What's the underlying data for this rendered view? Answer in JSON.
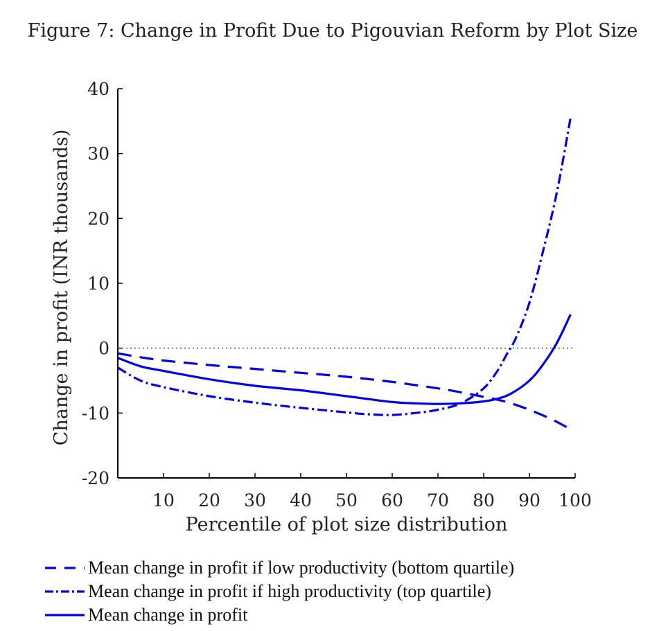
{
  "chart_data": {
    "type": "line",
    "title": "Figure 7: Change in Profit Due to Pigouvian Reform by Plot Size",
    "xlabel": "Percentile of plot size distribution",
    "ylabel": "Change in profit (INR thousands)",
    "xlim": [
      0,
      100
    ],
    "ylim": [
      -20,
      40
    ],
    "x_ticks": [
      10,
      20,
      30,
      40,
      50,
      60,
      70,
      80,
      90,
      100
    ],
    "y_ticks": [
      -20,
      -10,
      0,
      10,
      20,
      30,
      40
    ],
    "x_tick_labels": [
      "10",
      "20",
      "30",
      "40",
      "50",
      "60",
      "70",
      "80",
      "90",
      "100"
    ],
    "y_tick_labels": [
      "-20",
      "-10",
      "0",
      "10",
      "20",
      "30",
      "40"
    ],
    "reference_line": {
      "y": 0,
      "style": "dotted"
    },
    "grid": false,
    "legend_position": "bottom",
    "line_color": "#0000e6",
    "series": [
      {
        "name": "Mean change in profit if low productivity (bottom quartile)",
        "style": "dashed",
        "x": [
          0,
          5,
          10,
          20,
          30,
          40,
          50,
          60,
          70,
          75,
          80,
          85,
          90,
          95,
          99
        ],
        "y": [
          -0.8,
          -1.4,
          -1.9,
          -2.6,
          -3.2,
          -3.8,
          -4.4,
          -5.2,
          -6.2,
          -6.8,
          -7.5,
          -8.3,
          -9.5,
          -11.0,
          -12.5
        ]
      },
      {
        "name": "Mean change in profit if high productivity (top quartile)",
        "style": "dashdot",
        "x": [
          0,
          5,
          10,
          20,
          30,
          40,
          50,
          55,
          60,
          65,
          70,
          75,
          80,
          83,
          85,
          87,
          90,
          93,
          96,
          99
        ],
        "y": [
          -3.0,
          -5.0,
          -6.0,
          -7.4,
          -8.4,
          -9.2,
          -9.9,
          -10.2,
          -10.3,
          -10.0,
          -9.5,
          -8.5,
          -6.2,
          -3.5,
          -1.0,
          1.5,
          7.0,
          15.0,
          24.0,
          35.5
        ]
      },
      {
        "name": "Mean change in profit",
        "style": "solid",
        "x": [
          0,
          5,
          10,
          20,
          30,
          40,
          50,
          60,
          65,
          70,
          75,
          80,
          83,
          86,
          90,
          93,
          96,
          99
        ],
        "y": [
          -1.5,
          -2.8,
          -3.5,
          -4.8,
          -5.8,
          -6.5,
          -7.4,
          -8.3,
          -8.5,
          -8.6,
          -8.5,
          -8.2,
          -7.8,
          -7.0,
          -5.0,
          -2.5,
          0.8,
          5.2
        ]
      }
    ]
  }
}
